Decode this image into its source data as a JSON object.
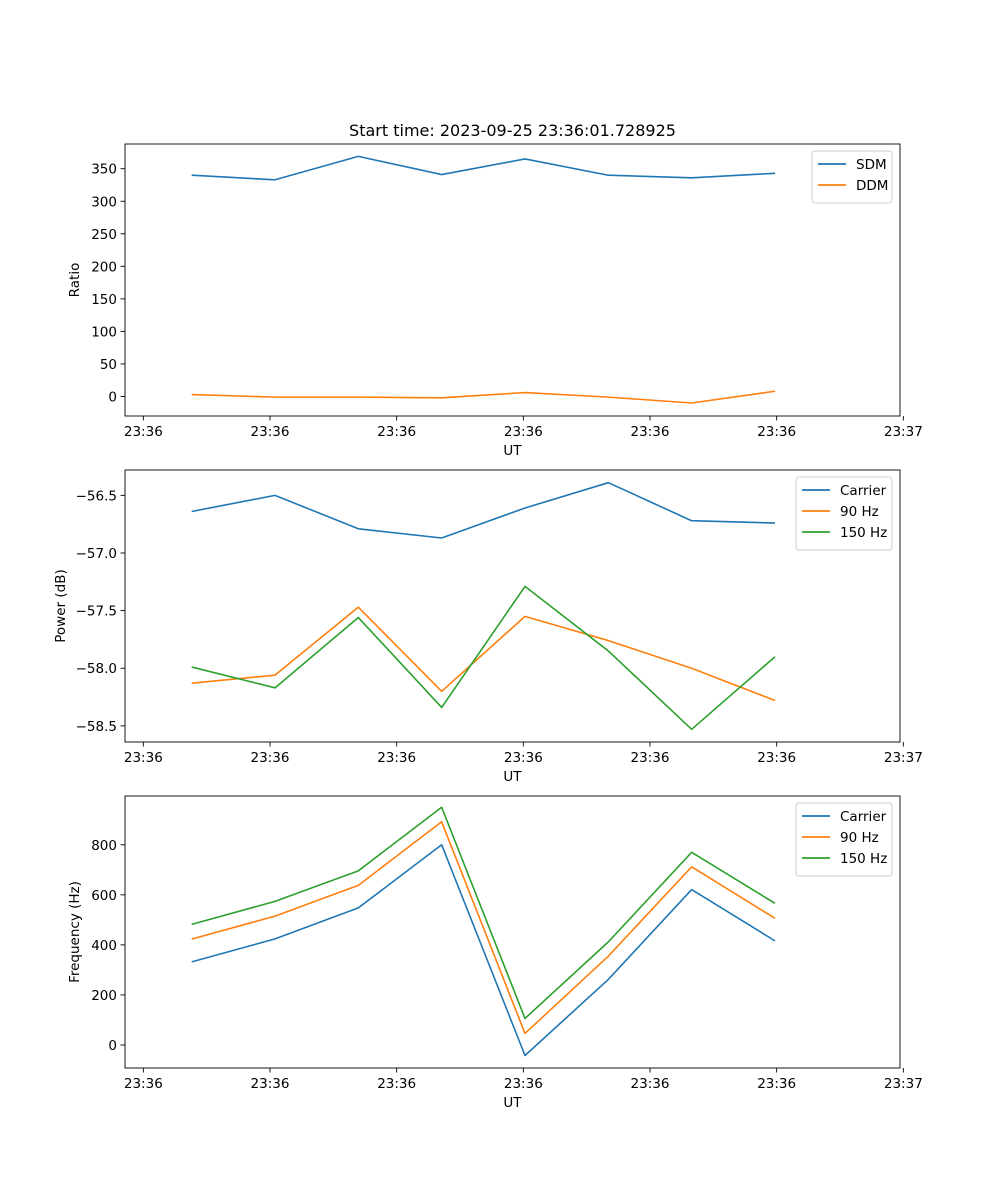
{
  "colors": {
    "c0": "#1f77b4",
    "c1": "#ff7f0e",
    "c2": "#2ca02c"
  },
  "chart_data": [
    {
      "type": "line",
      "title": "Start time: 2023-09-25 23:36:01.728925",
      "xlabel": "UT",
      "ylabel": "Ratio",
      "x": [
        1,
        2,
        3,
        4,
        5,
        6,
        7,
        8
      ],
      "xlim": [
        0.2,
        9.5
      ],
      "xticks": [
        0.42,
        1.94,
        3.46,
        4.98,
        6.5,
        8.02,
        9.54
      ],
      "xtick_labels": [
        "23:36",
        "23:36",
        "23:36",
        "23:36",
        "23:36",
        "23:36",
        "23:37"
      ],
      "ylim": [
        -30,
        388
      ],
      "yticks": [
        0,
        50,
        100,
        150,
        200,
        250,
        300,
        350
      ],
      "ytick_labels": [
        "0",
        "50",
        "100",
        "150",
        "200",
        "250",
        "300",
        "350"
      ],
      "legend_position": "top-right",
      "series": [
        {
          "name": "SDM",
          "color": "#1f77b4",
          "values": [
            340,
            333,
            369,
            341,
            365,
            340,
            336,
            343
          ]
        },
        {
          "name": "DDM",
          "color": "#ff7f0e",
          "values": [
            3,
            -1,
            -1,
            -2,
            6,
            -1,
            -10,
            8
          ]
        }
      ]
    },
    {
      "type": "line",
      "title": "",
      "xlabel": "UT",
      "ylabel": "Power (dB)",
      "x": [
        1,
        2,
        3,
        4,
        5,
        6,
        7,
        8
      ],
      "xlim": [
        0.2,
        9.5
      ],
      "xticks": [
        0.42,
        1.94,
        3.46,
        4.98,
        6.5,
        8.02,
        9.54
      ],
      "xtick_labels": [
        "23:36",
        "23:36",
        "23:36",
        "23:36",
        "23:36",
        "23:36",
        "23:37"
      ],
      "ylim": [
        -58.64,
        -56.28
      ],
      "yticks": [
        -58.5,
        -58.0,
        -57.5,
        -57.0,
        -56.5
      ],
      "ytick_labels": [
        "−58.5",
        "−58.0",
        "−57.5",
        "−57.0",
        "−56.5"
      ],
      "legend_position": "top-right",
      "series": [
        {
          "name": "Carrier",
          "color": "#1f77b4",
          "values": [
            -56.64,
            -56.5,
            -56.79,
            -56.87,
            -56.61,
            -56.39,
            -56.72,
            -56.74
          ]
        },
        {
          "name": "90 Hz",
          "color": "#ff7f0e",
          "values": [
            -58.13,
            -58.06,
            -57.47,
            -58.2,
            -57.55,
            -57.76,
            -58.0,
            -58.28
          ]
        },
        {
          "name": "150 Hz",
          "color": "#2ca02c",
          "values": [
            -57.99,
            -58.17,
            -57.56,
            -58.34,
            -57.29,
            -57.85,
            -58.53,
            -57.9
          ]
        }
      ]
    },
    {
      "type": "line",
      "title": "",
      "xlabel": "UT",
      "ylabel": "Frequency (Hz)",
      "x": [
        1,
        2,
        3,
        4,
        5,
        6,
        7,
        8
      ],
      "xlim": [
        0.2,
        9.5
      ],
      "xticks": [
        0.42,
        1.94,
        3.46,
        4.98,
        6.5,
        8.02,
        9.54
      ],
      "xtick_labels": [
        "23:36",
        "23:36",
        "23:36",
        "23:36",
        "23:36",
        "23:36",
        "23:37"
      ],
      "ylim": [
        -92,
        995
      ],
      "yticks": [
        0,
        200,
        400,
        600,
        800
      ],
      "ytick_labels": [
        "0",
        "200",
        "400",
        "600",
        "800"
      ],
      "legend_position": "top-right",
      "series": [
        {
          "name": "Carrier",
          "color": "#1f77b4",
          "values": [
            332,
            424,
            548,
            800,
            -42,
            262,
            621,
            416
          ]
        },
        {
          "name": "90 Hz",
          "color": "#ff7f0e",
          "values": [
            423,
            515,
            638,
            892,
            46,
            355,
            712,
            506
          ]
        },
        {
          "name": "150 Hz",
          "color": "#2ca02c",
          "values": [
            482,
            574,
            696,
            950,
            106,
            412,
            770,
            566
          ]
        }
      ]
    }
  ]
}
